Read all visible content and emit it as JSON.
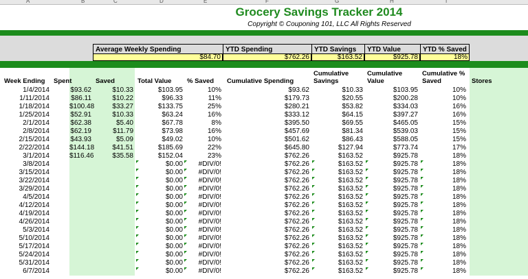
{
  "column_letters": [
    "A",
    "B",
    "C",
    "D",
    "E",
    "F",
    "G",
    "H",
    "I"
  ],
  "title": "Grocery Savings Tracker 2014",
  "copyright": "Copyright © Couponing 101, LLC All Rights Reserved",
  "summary": {
    "labels": [
      "Average Weekly Spending",
      "YTD Spending",
      "YTD Savings",
      "YTD Value",
      "YTD % Saved"
    ],
    "values": [
      "$84.70",
      "$762.26",
      "$163.52",
      "$925.78",
      "18%"
    ]
  },
  "table_headers": {
    "week_ending": "Week Ending",
    "spent": "Spent",
    "saved": "Saved",
    "total_value": "Total Value",
    "pct_saved": "% Saved",
    "cum_spending": "Cumulative Spending",
    "cum_savings": [
      "Cumulative",
      "Savings"
    ],
    "cum_value": [
      "Cumulative",
      "Value"
    ],
    "cum_pct": [
      "Cumulative %",
      "Saved"
    ],
    "stores": "Stores"
  },
  "rows": [
    [
      "1/4/2014",
      "$93.62",
      "$10.33",
      "$103.95",
      "10%",
      "$93.62",
      "$10.33",
      "$103.95",
      "10%"
    ],
    [
      "1/11/2014",
      "$86.11",
      "$10.22",
      "$96.33",
      "11%",
      "$179.73",
      "$20.55",
      "$200.28",
      "10%"
    ],
    [
      "1/18/2014",
      "$100.48",
      "$33.27",
      "$133.75",
      "25%",
      "$280.21",
      "$53.82",
      "$334.03",
      "16%"
    ],
    [
      "1/25/2014",
      "$52.91",
      "$10.33",
      "$63.24",
      "16%",
      "$333.12",
      "$64.15",
      "$397.27",
      "16%"
    ],
    [
      "2/1/2014",
      "$62.38",
      "$5.40",
      "$67.78",
      "8%",
      "$395.50",
      "$69.55",
      "$465.05",
      "15%"
    ],
    [
      "2/8/2014",
      "$62.19",
      "$11.79",
      "$73.98",
      "16%",
      "$457.69",
      "$81.34",
      "$539.03",
      "15%"
    ],
    [
      "2/15/2014",
      "$43.93",
      "$5.09",
      "$49.02",
      "10%",
      "$501.62",
      "$86.43",
      "$588.05",
      "15%"
    ],
    [
      "2/22/2014",
      "$144.18",
      "$41.51",
      "$185.69",
      "22%",
      "$645.80",
      "$127.94",
      "$773.74",
      "17%"
    ],
    [
      "3/1/2014",
      "$116.46",
      "$35.58",
      "$152.04",
      "23%",
      "$762.26",
      "$163.52",
      "$925.78",
      "18%"
    ],
    [
      "3/8/2014",
      "",
      "",
      "$0.00",
      "#DIV/0!",
      "$762.26",
      "$163.52",
      "$925.78",
      "18%"
    ],
    [
      "3/15/2014",
      "",
      "",
      "$0.00",
      "#DIV/0!",
      "$762.26",
      "$163.52",
      "$925.78",
      "18%"
    ],
    [
      "3/22/2014",
      "",
      "",
      "$0.00",
      "#DIV/0!",
      "$762.26",
      "$163.52",
      "$925.78",
      "18%"
    ],
    [
      "3/29/2014",
      "",
      "",
      "$0.00",
      "#DIV/0!",
      "$762.26",
      "$163.52",
      "$925.78",
      "18%"
    ],
    [
      "4/5/2014",
      "",
      "",
      "$0.00",
      "#DIV/0!",
      "$762.26",
      "$163.52",
      "$925.78",
      "18%"
    ],
    [
      "4/12/2014",
      "",
      "",
      "$0.00",
      "#DIV/0!",
      "$762.26",
      "$163.52",
      "$925.78",
      "18%"
    ],
    [
      "4/19/2014",
      "",
      "",
      "$0.00",
      "#DIV/0!",
      "$762.26",
      "$163.52",
      "$925.78",
      "18%"
    ],
    [
      "4/26/2014",
      "",
      "",
      "$0.00",
      "#DIV/0!",
      "$762.26",
      "$163.52",
      "$925.78",
      "18%"
    ],
    [
      "5/3/2014",
      "",
      "",
      "$0.00",
      "#DIV/0!",
      "$762.26",
      "$163.52",
      "$925.78",
      "18%"
    ],
    [
      "5/10/2014",
      "",
      "",
      "$0.00",
      "#DIV/0!",
      "$762.26",
      "$163.52",
      "$925.78",
      "18%"
    ],
    [
      "5/17/2014",
      "",
      "",
      "$0.00",
      "#DIV/0!",
      "$762.26",
      "$163.52",
      "$925.78",
      "18%"
    ],
    [
      "5/24/2014",
      "",
      "",
      "$0.00",
      "#DIV/0!",
      "$762.26",
      "$163.52",
      "$925.78",
      "18%"
    ],
    [
      "5/31/2014",
      "",
      "",
      "$0.00",
      "#DIV/0!",
      "$762.26",
      "$163.52",
      "$925.78",
      "18%"
    ],
    [
      "6/7/2014",
      "",
      "",
      "$0.00",
      "#DIV/0!",
      "$762.26",
      "$163.52",
      "$925.78",
      "18%"
    ]
  ],
  "colors": {
    "band_green": "#1c8c1c",
    "title_green": "#1f8a1f",
    "light_green": "#d6f5d6",
    "highlight_yellow": "#ffff99",
    "header_gray": "#dcdcdc"
  }
}
